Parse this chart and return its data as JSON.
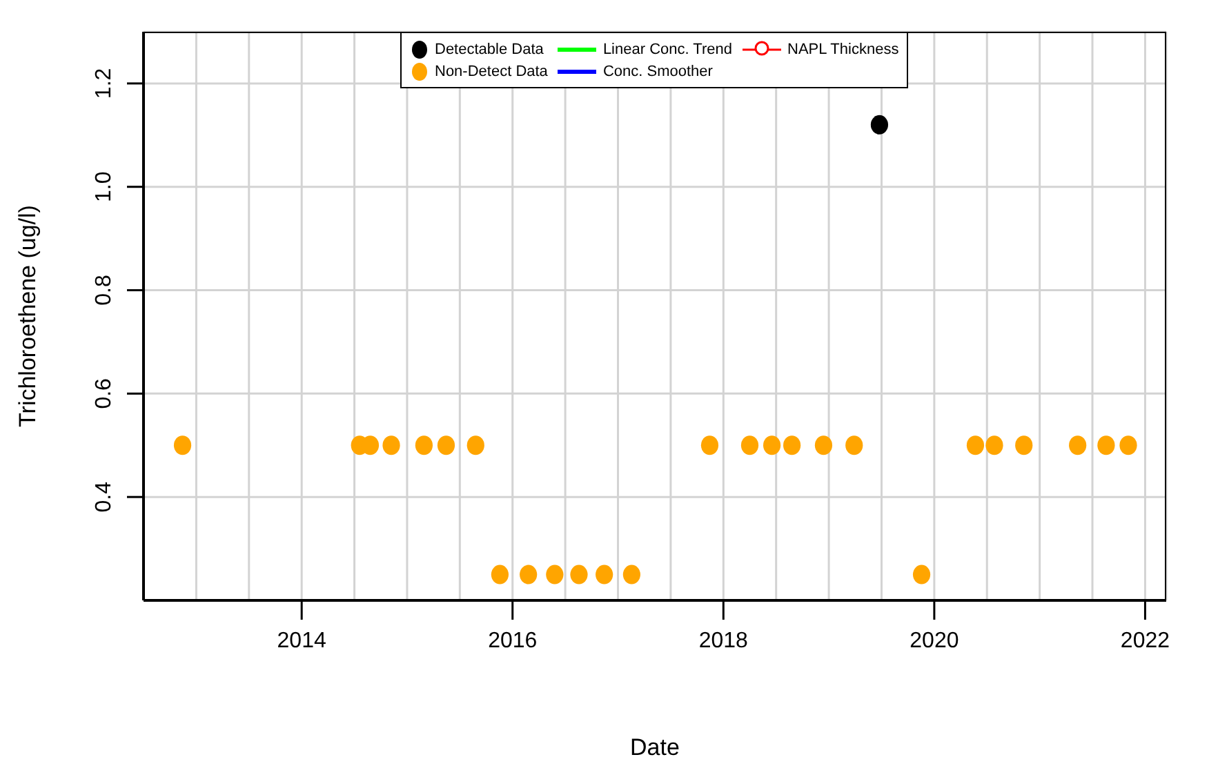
{
  "chart_data": {
    "type": "scatter",
    "xlabel": "Date",
    "ylabel": "Trichloroethene (ug/l)",
    "xlim": [
      2012.5,
      2022.2
    ],
    "ylim": [
      0.2,
      1.3
    ],
    "xticks": [
      {
        "value": 2013,
        "label": null
      },
      {
        "value": 2013.5,
        "label": null
      },
      2014,
      {
        "value": 2014.5,
        "label": null
      },
      {
        "value": 2015,
        "label": null
      },
      {
        "value": 2015.5,
        "label": null
      },
      2016,
      {
        "value": 2016.5,
        "label": null
      },
      {
        "value": 2017,
        "label": null
      },
      {
        "value": 2017.5,
        "label": null
      },
      2018,
      {
        "value": 2018.5,
        "label": null
      },
      {
        "value": 2019,
        "label": null
      },
      {
        "value": 2019.5,
        "label": null
      },
      2020,
      {
        "value": 2020.5,
        "label": null
      },
      {
        "value": 2021,
        "label": null
      },
      {
        "value": 2021.5,
        "label": null
      },
      2022
    ],
    "yticks": [
      0.4,
      0.6,
      0.8,
      {
        "value": 1,
        "label": "1.0"
      },
      1.2
    ],
    "grid": true,
    "legend": "top",
    "marker": "circle",
    "series": [
      {
        "name": "Detectable Data",
        "color": "#000000",
        "x": [
          2019.48
        ],
        "values": [
          1.12
        ]
      },
      {
        "name": "Non-Detect Data",
        "color": "#ffa500",
        "x": [
          2012.87,
          2014.55,
          2014.65,
          2014.85,
          2015.16,
          2015.37,
          2015.65,
          2015.88,
          2016.15,
          2016.4,
          2016.63,
          2016.87,
          2017.13,
          2017.87,
          2018.25,
          2018.46,
          2018.65,
          2018.95,
          2019.24,
          2019.88,
          2020.39,
          2020.57,
          2020.85,
          2021.36,
          2021.63,
          2021.84
        ],
        "values": [
          0.5,
          0.5,
          0.5,
          0.5,
          0.5,
          0.5,
          0.5,
          0.25,
          0.25,
          0.25,
          0.25,
          0.25,
          0.25,
          0.5,
          0.5,
          0.5,
          0.5,
          0.5,
          0.5,
          0.25,
          0.5,
          0.5,
          0.5,
          0.5,
          0.5,
          0.5
        ]
      },
      {
        "name": "Linear Conc. Trend",
        "type": "line",
        "color": "#00ff00"
      },
      {
        "name": "Conc. Smoother",
        "type": "line",
        "color": "#0000ff"
      },
      {
        "name": "NAPL Thickness",
        "type": "line",
        "color": "#ff0000",
        "marker": "circle"
      }
    ]
  }
}
